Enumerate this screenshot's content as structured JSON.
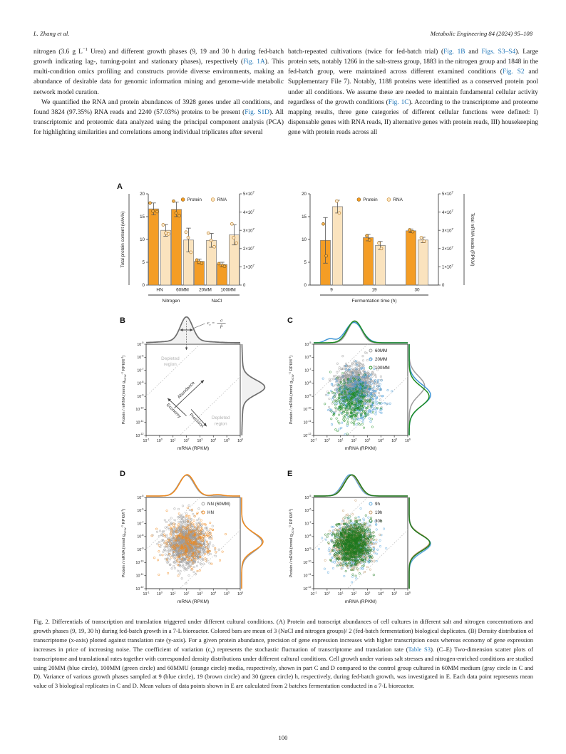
{
  "header": {
    "author": "L. Zhang et al.",
    "journal": "Metabolic Engineering 84 (2024) 95–108"
  },
  "page_number": "100",
  "colors": {
    "link_blue": "#2277b8",
    "protein_orange": "#F49D25",
    "rna_light": "#FAE3BE",
    "gray_series": "#9C9C9C",
    "blue_series": "#3E95D5",
    "green_series": "#1E8C23",
    "orange_series": "#F08A1D",
    "tan_series": "#C49A6A",
    "lightblue_series": "#5AA7DC",
    "schematic_gray": "#6e6e6e"
  },
  "body": {
    "left_paragraphs": [
      {
        "indent": false,
        "segments": [
          {
            "t": "nitrogen (3.6 g L"
          },
          {
            "t": "−1",
            "s": "sup"
          },
          {
            "t": " Urea) and different growth phases (9, 19 and 30 h during fed-batch growth indicating lag-, turning-point and stationary phases), respectively ("
          },
          {
            "t": "Fig. 1A",
            "s": "link"
          },
          {
            "t": "). This multi-condition omics profiling and constructs provide diverse environments, making an abundance of desirable data for genomic information mining and genome-wide metabolic network model curation."
          }
        ]
      },
      {
        "indent": true,
        "segments": [
          {
            "t": "We quantified the RNA and protein abundances of 3928 genes under all conditions, and found 3824 (97.35%) RNA reads and 2240 (57.03%) proteins to be present ("
          },
          {
            "t": "Fig. S1D",
            "s": "link"
          },
          {
            "t": "). All transcriptomic and proteomic data analyzed using the principal component analysis (PCA) for highlighting similarities and correlations among individual triplicates after several"
          }
        ]
      }
    ],
    "right_paragraphs": [
      {
        "indent": false,
        "segments": [
          {
            "t": "batch-repeated cultivations (twice for fed-batch trial) ("
          },
          {
            "t": "Fig. 1B",
            "s": "link"
          },
          {
            "t": " and "
          },
          {
            "t": "Figs. S3–S4",
            "s": "link"
          },
          {
            "t": "). Large protein sets, notably 1266 in the salt-stress group, 1883 in the nitrogen group and 1848 in the fed-batch group, were maintained across different examined conditions ("
          },
          {
            "t": "Fig. S2",
            "s": "link"
          },
          {
            "t": " and Supplementary File 7). Notably, 1188 proteins were identified as a conserved protein pool under all conditions. We assume these are needed to maintain fundamental cellular activity regardless of the growth conditions ("
          },
          {
            "t": "Fig. 1C",
            "s": "link"
          },
          {
            "t": "). According to the transcriptome and proteome mapping results, three gene categories of different cellular functions were defined: I) dispensable genes with RNA reads, II) alternative genes with protein reads, III) housekeeping gene with protein reads across all"
          }
        ]
      }
    ]
  },
  "caption": {
    "segments": [
      {
        "t": "Fig. 2."
      },
      {
        "t": " Differentials of transcription and translation triggered under different cultural conditions. (A) Protein and transcript abundances of cell cultures in different salt and nitrogen concentrations and growth phases (9, 19, 30 h) during fed-batch growth in a 7-L bioreactor. Colored bars are mean of 3 (NaCl and nitrogen groups)/ 2 (fed-batch fermentation) biological duplicates. (B) Density distribution of transcriptome (x-axis) plotted against translation rate (y-axis). For a given protein abundance, precision of gene expression increases with higher transcription costs whereas economy of gene expression increases in price of increasing noise. The coefficient of variation (c"
      },
      {
        "t": "v",
        "s": "sub"
      },
      {
        "t": ") represents the stochastic fluctuation of transcriptome and translation rate ("
      },
      {
        "t": "Table S3",
        "s": "link"
      },
      {
        "t": "). (C–E) Two-dimension scatter plots of transcriptome and translational rates together with corresponded density distributions under different cultural conditions. Cell growth under various salt stresses and nitrogen-enriched conditions are studied using 20MM (blue circle), 100MM (green circle) and 60MMU (orange circle) media, respectively, shown in part C and D compared to the control group cultured in 60MM medium (gray circle in C and D). Variance of various growth phases sampled at 9 (blue circle), 19 (brown circle) and 30 (green circle) h, respectively, during fed-batch growth, was investigated in E. Each data point represents mean value of 3 biological replicates in C and D. Mean values of data points shown in E are calculated from 2 batches fermentation conducted in a 7-L bioreactor."
      }
    ]
  },
  "chart_data": [
    {
      "id": "A_left",
      "type": "bar",
      "label": "A",
      "categories": [
        "HN",
        "60MM",
        "20MM",
        "100MM"
      ],
      "group_brackets": [
        {
          "label": "Nitrogen",
          "from": 0,
          "to": 1
        },
        {
          "label": "NaCl",
          "from": 2,
          "to": 3
        }
      ],
      "left_axis": {
        "label": "Total protein content (w/w%)",
        "ticks": [
          0,
          5,
          10,
          15,
          20
        ],
        "max": 20
      },
      "right_axis": {
        "tick_labels": [
          "0",
          "1×10^{7}",
          "2×10^{7}",
          "3×10^{7}",
          "4×10^{7}",
          "5×10^{7}"
        ],
        "max": 5
      },
      "legend": [
        "Protein",
        "RNA"
      ],
      "series": [
        {
          "name": "Protein",
          "axis": "left",
          "color": "#F49D25",
          "values": [
            16.7,
            16.6,
            5.2,
            4.5
          ],
          "errors": [
            1.3,
            1.6,
            0.5,
            0.5
          ],
          "points": [
            [
              18.0,
              16.2,
              16.1
            ],
            [
              18.4,
              15.8,
              15.2
            ],
            [
              5.5,
              5.0,
              4.8
            ],
            [
              4.7,
              4.3,
              4.1
            ]
          ]
        },
        {
          "name": "RNA",
          "axis": "right",
          "color": "#FAE3BE",
          "values": [
            3.0,
            2.47,
            2.45,
            2.75
          ],
          "errors": [
            0.32,
            0.65,
            0.38,
            0.55
          ],
          "points": [
            [
              3.3,
              2.85,
              2.8
            ],
            [
              2.9,
              2.6,
              1.8
            ],
            [
              2.85,
              2.45,
              2.1
            ],
            [
              3.35,
              2.6,
              2.3
            ]
          ]
        }
      ]
    },
    {
      "id": "A_right",
      "type": "bar",
      "label": "",
      "categories": [
        "9",
        "19",
        "30"
      ],
      "group_brackets": [
        {
          "label": "Fermentation time (h)",
          "from": 0,
          "to": 2
        }
      ],
      "left_axis": {
        "label": "",
        "ticks": [
          0,
          5,
          10,
          15,
          20
        ],
        "max": 20
      },
      "right_axis": {
        "tick_labels": [
          "0",
          "1×10^{7}",
          "2×10^{7}",
          "3×10^{7}",
          "4×10^{7}",
          "5×10^{7}"
        ],
        "max": 5,
        "label": "Total mRNA reads (RPKM)"
      },
      "legend": [
        "Protein",
        "RNA"
      ],
      "series": [
        {
          "name": "Protein",
          "axis": "left",
          "color": "#F49D25",
          "values": [
            9.8,
            10.4,
            11.9
          ],
          "errors": [
            5.0,
            0.7,
            0.4
          ],
          "points": [
            [
              13.4,
              6.4
            ],
            [
              10.8,
              9.9
            ],
            [
              12.1,
              11.7
            ]
          ]
        },
        {
          "name": "RNA",
          "axis": "right",
          "color": "#FAE3BE",
          "values": [
            4.3,
            2.17,
            2.47
          ],
          "errors": [
            0.35,
            0.22,
            0.15
          ],
          "points": [
            [
              4.6,
              3.95
            ],
            [
              2.3,
              2.0
            ],
            [
              2.6,
              2.4
            ]
          ]
        }
      ]
    },
    {
      "id": "B",
      "type": "density-schematic",
      "label": "B",
      "xlabel": "mRNA (RPKM)",
      "ylabel": "Protein / mRNA (mmol g_{DCW}^{-1} RPKM^{-1})",
      "xlim": [
        -1,
        6
      ],
      "ylim": [
        -12,
        -5
      ],
      "x_tick_labels": [
        "10^{-1}",
        "10^{0}",
        "10^{1}",
        "10^{2}",
        "10^{3}",
        "10^{4}",
        "10^{5}",
        "10^{6}"
      ],
      "y_tick_labels": [
        "10^{-5}",
        "10^{-6}",
        "10^{-7}",
        "10^{-8}",
        "10^{-9}",
        "10^{-10}",
        "10^{-11}",
        "10^{-12}"
      ],
      "diagonal_offsets": [
        -8,
        -13.5
      ],
      "annotations": {
        "depleted_top": "Depleted region",
        "depleted_bottom": "Depleted region",
        "arrow_economy": "Economy",
        "arrow_abundance": "Abundance",
        "arrow_precision": "Precision",
        "formula": {
          "lhs": "c",
          "lhs_sub": "v",
          "eq": "=",
          "num": "σ",
          "den": "P̄"
        }
      },
      "top_density": [
        {
          "color": "#6e6e6e",
          "fill": "#f1f1f1",
          "mu": 2.0,
          "sd": 0.45,
          "amp": 1.0,
          "tail": 0.1
        }
      ],
      "right_density": [
        {
          "color": "#6e6e6e",
          "fill": "#f1f1f1",
          "mu": -8.3,
          "sd": 0.55,
          "amp": 1.0,
          "tail": 0.08
        }
      ]
    },
    {
      "id": "C",
      "type": "scatter-joint",
      "label": "C",
      "xlabel": "mRNA (RPKM)",
      "ylabel": "Protein / mRNA (mmol g_{DCW}^{-1} RPKM^{-1})",
      "xlim": [
        -1,
        6
      ],
      "ylim": [
        -12,
        -5
      ],
      "x_tick_labels": [
        "10^{-1}",
        "10^{0}",
        "10^{1}",
        "10^{2}",
        "10^{3}",
        "10^{4}",
        "10^{5}",
        "10^{6}"
      ],
      "y_tick_labels": [
        "10^{-5}",
        "10^{-6}",
        "10^{-7}",
        "10^{-8}",
        "10^{-9}",
        "10^{-10}",
        "10^{-11}",
        "10^{-12}"
      ],
      "diagonal_offsets": [
        -8,
        -13.5
      ],
      "legend": [
        {
          "label": "60MM",
          "color": "#9C9C9C"
        },
        {
          "label": "20MM",
          "color": "#3E95D5"
        },
        {
          "label": "100MM",
          "color": "#1E8C23"
        }
      ],
      "series": [
        {
          "name": "60MM",
          "color": "#9C9C9C",
          "n": 1100,
          "mu": [
            2.05,
            -8.3
          ],
          "sd": [
            0.7,
            0.8
          ]
        },
        {
          "name": "20MM",
          "color": "#3E95D5",
          "n": 380,
          "mu": [
            2.3,
            -8.9
          ],
          "sd": [
            0.95,
            0.95
          ]
        },
        {
          "name": "100MM",
          "color": "#1E8C23",
          "n": 340,
          "mu": [
            1.9,
            -9.4
          ],
          "sd": [
            0.75,
            0.95
          ]
        }
      ],
      "top_density": [
        {
          "color": "#9C9C9C",
          "mu": 2.05,
          "sd": 0.5,
          "amp": 1.0
        },
        {
          "color": "#3E95D5",
          "mu": 2.0,
          "sd": 0.62,
          "amp": 0.95,
          "bump": {
            "mu": 0.2,
            "sd": 0.35,
            "amp": 0.18
          }
        },
        {
          "color": "#1E8C23",
          "mu": 2.05,
          "sd": 0.55,
          "amp": 1.02
        }
      ],
      "right_density": [
        {
          "color": "#9C9C9C",
          "mu": -8.2,
          "sd": 0.75,
          "amp": 0.72
        },
        {
          "color": "#3E95D5",
          "mu": -8.9,
          "sd": 0.8,
          "amp": 1.0
        },
        {
          "color": "#1E8C23",
          "mu": -9.0,
          "sd": 0.75,
          "amp": 0.93
        }
      ]
    },
    {
      "id": "D",
      "type": "scatter-joint",
      "label": "D",
      "xlabel": "mRNA (RPKM)",
      "ylabel": "Protein / mRNA (mmol g_{DCW}^{-1} RPKM^{-1})",
      "xlim": [
        -1,
        6
      ],
      "ylim": [
        -12,
        -5
      ],
      "x_tick_labels": [
        "10^{-1}",
        "10^{0}",
        "10^{1}",
        "10^{2}",
        "10^{3}",
        "10^{4}",
        "10^{5}",
        "10^{6}"
      ],
      "y_tick_labels": [
        "10^{-5}",
        "10^{-6}",
        "10^{-7}",
        "10^{-8}",
        "10^{-9}",
        "10^{-10}",
        "10^{-11}",
        "10^{-12}"
      ],
      "diagonal_offsets": [
        -8,
        -13.5
      ],
      "legend": [
        {
          "label": "NN (60MM)",
          "color": "#9C9C9C"
        },
        {
          "label": "HN",
          "color": "#F08A1D"
        }
      ],
      "series": [
        {
          "name": "NN (60MM)",
          "color": "#9C9C9C",
          "n": 1300,
          "mu": [
            2.0,
            -8.5
          ],
          "sd": [
            0.75,
            0.85
          ]
        },
        {
          "name": "HN",
          "color": "#F08A1D",
          "n": 300,
          "mu": [
            2.15,
            -8.4
          ],
          "sd": [
            0.9,
            0.95
          ]
        }
      ],
      "top_density": [
        {
          "color": "#9C9C9C",
          "mu": 2.0,
          "sd": 0.55,
          "amp": 0.97
        },
        {
          "color": "#F08A1D",
          "mu": 2.05,
          "sd": 0.55,
          "amp": 1.0,
          "bump": {
            "mu": 4.3,
            "sd": 0.4,
            "amp": 0.07
          }
        }
      ],
      "right_density": [
        {
          "color": "#9C9C9C",
          "mu": -8.45,
          "sd": 0.7,
          "amp": 0.95
        },
        {
          "color": "#F08A1D",
          "mu": -8.4,
          "sd": 0.65,
          "amp": 1.0
        }
      ]
    },
    {
      "id": "E",
      "type": "scatter-joint",
      "label": "E",
      "xlabel": "mRNA (RPKM)",
      "ylabel": "Protein / mRNA (mmol g_{DCW}^{-1} RPKM^{-1})",
      "xlim": [
        -1,
        6
      ],
      "ylim": [
        -12,
        -5
      ],
      "x_tick_labels": [
        "10^{-1}",
        "10^{0}",
        "10^{1}",
        "10^{2}",
        "10^{3}",
        "10^{4}",
        "10^{5}",
        "10^{6}"
      ],
      "y_tick_labels": [
        "10^{-5}",
        "10^{-6}",
        "10^{-7}",
        "10^{-8}",
        "10^{-9}",
        "10^{-10}",
        "10^{-11}",
        "10^{-12}"
      ],
      "diagonal_offsets": [
        -8,
        -13.5
      ],
      "legend": [
        {
          "label": "9h",
          "color": "#5AA7DC"
        },
        {
          "label": "19h",
          "color": "#C49A6A"
        },
        {
          "label": "30h",
          "color": "#1F7A1F"
        }
      ],
      "series": [
        {
          "name": "9h",
          "color": "#5AA7DC",
          "n": 600,
          "mu": [
            1.95,
            -8.6
          ],
          "sd": [
            0.75,
            0.85
          ]
        },
        {
          "name": "19h",
          "color": "#C49A6A",
          "n": 600,
          "mu": [
            1.9,
            -8.55
          ],
          "sd": [
            0.7,
            0.8
          ]
        },
        {
          "name": "30h",
          "color": "#1F7A1F",
          "n": 900,
          "mu": [
            1.9,
            -8.6
          ],
          "sd": [
            0.7,
            0.8
          ]
        }
      ],
      "top_density": [
        {
          "color": "#5AA7DC",
          "mu": 1.72,
          "sd": 0.55,
          "amp": 1.0
        },
        {
          "color": "#C49A6A",
          "mu": 1.8,
          "sd": 0.55,
          "amp": 0.98
        },
        {
          "color": "#1F7A1F",
          "mu": 1.85,
          "sd": 0.55,
          "amp": 0.99
        }
      ],
      "right_density": [
        {
          "color": "#5AA7DC",
          "mu": -8.55,
          "sd": 0.65,
          "amp": 1.0
        },
        {
          "color": "#C49A6A",
          "mu": -8.45,
          "sd": 0.6,
          "amp": 0.95
        },
        {
          "color": "#1F7A1F",
          "mu": -8.5,
          "sd": 0.6,
          "amp": 0.97
        }
      ]
    }
  ]
}
